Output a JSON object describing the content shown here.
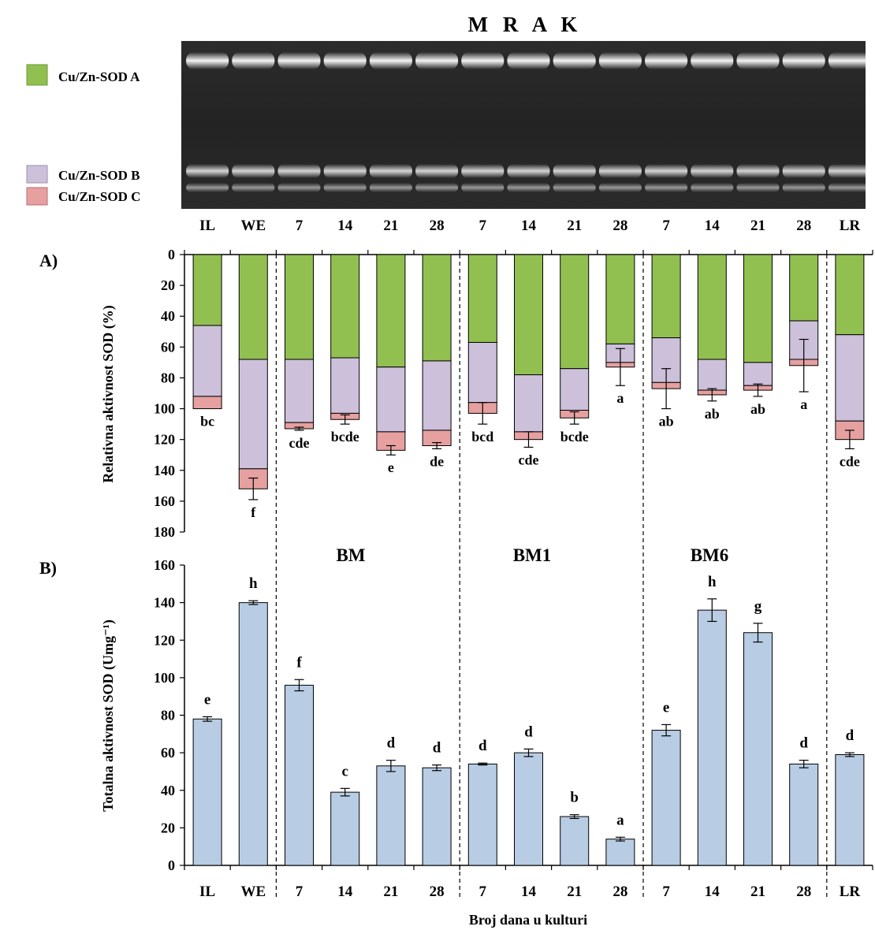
{
  "title": "M R A K",
  "gel_legend": [
    {
      "label": "Cu/Zn-SOD A",
      "color": "#92c050"
    },
    {
      "label": "Cu/Zn-SOD B",
      "color": "#ccc0da"
    },
    {
      "label": "Cu/Zn-SOD C",
      "color": "#e6a0a0"
    }
  ],
  "lanes": [
    "IL",
    "WE",
    "7",
    "14",
    "21",
    "28",
    "7",
    "14",
    "21",
    "28",
    "7",
    "14",
    "21",
    "28",
    "LR"
  ],
  "group_labels": [
    "BM",
    "BM1",
    "BM6"
  ],
  "panel_a_label": "A)",
  "panel_b_label": "B)",
  "xlabel": "Broj dana u kulturi",
  "chart_data": [
    {
      "type": "bar",
      "panel": "A)",
      "stacked": true,
      "inverted_y": true,
      "ylabel": "Relativna aktivnost SOD  (%)",
      "ylim": [
        0,
        180
      ],
      "yticks": [
        "0",
        "20",
        "40",
        "60",
        "80",
        "100",
        "120",
        "140",
        "160",
        "180"
      ],
      "categories": [
        "IL",
        "WE",
        "7",
        "14",
        "21",
        "28",
        "7",
        "14",
        "21",
        "28",
        "7",
        "14",
        "21",
        "28",
        "LR"
      ],
      "series": [
        {
          "name": "Cu/Zn-SOD A",
          "color": "#92c050",
          "values": [
            46,
            68,
            68,
            67,
            73,
            69,
            57,
            78,
            74,
            58,
            54,
            68,
            70,
            43,
            52
          ]
        },
        {
          "name": "Cu/Zn-SOD B",
          "color": "#ccc0da",
          "values": [
            46,
            71,
            41,
            36,
            42,
            45,
            39,
            37,
            27,
            12,
            29,
            20,
            15,
            25,
            56
          ]
        },
        {
          "name": "Cu/Zn-SOD C",
          "color": "#e6a0a0",
          "values": [
            8,
            13,
            4,
            4,
            12,
            10,
            7,
            5,
            5,
            3,
            4,
            3,
            3,
            4,
            12
          ]
        }
      ],
      "error_bars": [
        0,
        7,
        1,
        3,
        3,
        2,
        7,
        5,
        4,
        12,
        13,
        4,
        4,
        17,
        6
      ],
      "letters": [
        "bc",
        "f",
        "cde",
        "bcde",
        "e",
        "de",
        "bcd",
        "cde",
        "bcde",
        "a",
        "ab",
        "ab",
        "ab",
        "a",
        "cde"
      ]
    },
    {
      "type": "bar",
      "panel": "B)",
      "ylabel": "Totalna aktivnost SOD  (Umg⁻¹)",
      "ylim": [
        0,
        160
      ],
      "yticks": [
        "0",
        "20",
        "40",
        "60",
        "80",
        "100",
        "120",
        "140",
        "160"
      ],
      "categories": [
        "IL",
        "WE",
        "7",
        "14",
        "21",
        "28",
        "7",
        "14",
        "21",
        "28",
        "7",
        "14",
        "21",
        "28",
        "LR"
      ],
      "color": "#b8cce4",
      "values": [
        78,
        140,
        96,
        39,
        53,
        52,
        54,
        60,
        26,
        14,
        72,
        136,
        124,
        54,
        59
      ],
      "error_bars": [
        1.2,
        1,
        3,
        2,
        3,
        1.5,
        0.5,
        2,
        1,
        1,
        3,
        6,
        5,
        2,
        1
      ],
      "letters": [
        "e",
        "h",
        "f",
        "c",
        "d",
        "d",
        "d",
        "d",
        "b",
        "a",
        "e",
        "h",
        "g",
        "d",
        "d"
      ]
    }
  ]
}
